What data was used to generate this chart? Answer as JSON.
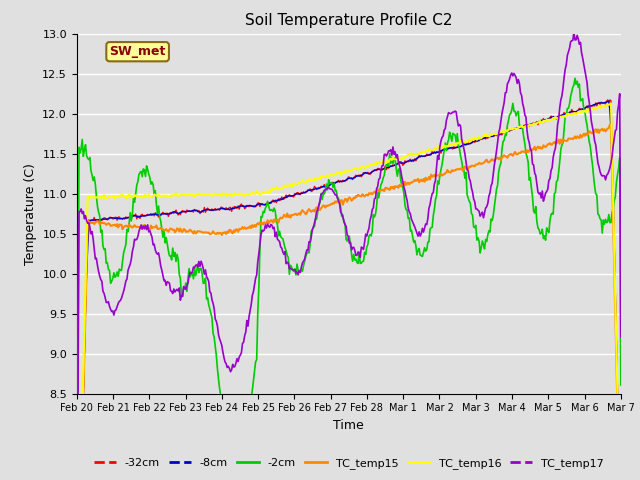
{
  "title": "Soil Temperature Profile C2",
  "xlabel": "Time",
  "ylabel": "Temperature (C)",
  "ylim": [
    8.5,
    13.0
  ],
  "yticks": [
    8.5,
    9.0,
    9.5,
    10.0,
    10.5,
    11.0,
    11.5,
    12.0,
    12.5,
    13.0
  ],
  "background_color": "#e0e0e0",
  "plot_bg_color": "#e0e0e0",
  "grid_color": "#ffffff",
  "annotation_text": "SW_met",
  "annotation_color": "#8b0000",
  "annotation_bg": "#ffff99",
  "annotation_border": "#8b6914",
  "series_names": [
    "-32cm",
    "-8cm",
    "-2cm",
    "TC_temp15",
    "TC_temp16",
    "TC_temp17"
  ],
  "series_colors": [
    "#ff0000",
    "#0000cc",
    "#00cc00",
    "#ff8800",
    "#ffff00",
    "#9900cc"
  ],
  "series_lw": [
    1.0,
    1.0,
    1.2,
    1.5,
    1.5,
    1.2
  ],
  "legend_ls": [
    "--",
    "--",
    "-",
    "-",
    "-",
    "--"
  ],
  "xtick_labels": [
    "Feb 20",
    "Feb 21",
    "Feb 22",
    "Feb 23",
    "Feb 24",
    "Feb 25",
    "Feb 26",
    "Feb 27",
    "Feb 28",
    "Mar 1",
    "Mar 2",
    "Mar 3",
    "Mar 4",
    "Mar 5",
    "Mar 6",
    "Mar 7"
  ],
  "n_points": 500
}
